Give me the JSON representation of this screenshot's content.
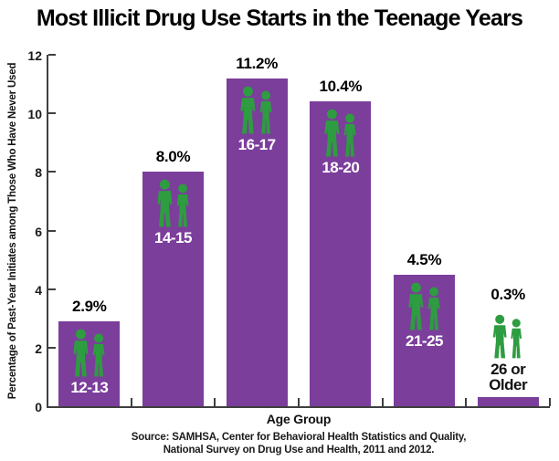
{
  "page": {
    "title": "Most Illicit Drug Use Starts in the Teenage Years"
  },
  "chart_data": {
    "type": "bar",
    "title": "Most Illicit Drug Use Starts in the Teenage Years",
    "categories": [
      "12-13",
      "14-15",
      "16-17",
      "18-20",
      "21-25",
      "26 or Older"
    ],
    "category_label_lines": [
      [
        "12-13"
      ],
      [
        "14-15"
      ],
      [
        "16-17"
      ],
      [
        "18-20"
      ],
      [
        "21-25"
      ],
      [
        "26 or",
        "Older"
      ]
    ],
    "values": [
      2.9,
      8.0,
      11.2,
      10.4,
      4.5,
      0.3
    ],
    "value_labels": [
      "2.9%",
      "8.0%",
      "11.2%",
      "10.4%",
      "4.5%",
      "0.3%"
    ],
    "xlabel": "Age Group",
    "ylabel": "Percentage of Past-Year Initiates among Those Who Have Never Used",
    "ylim": [
      0,
      12
    ],
    "yticks": [
      0,
      2,
      4,
      6,
      8,
      10,
      12
    ],
    "grid": false,
    "legend_position": "none",
    "bar_icon": "two-people-pictogram",
    "colors": {
      "bar": "#7B3E9B",
      "icon_green": "#2E9C40",
      "axis": "#3F3F3F",
      "bar_label_text": "#FFFFFF",
      "value_label_text": "#000000"
    },
    "source_lines": [
      "Source: SAMHSA, Center for Behavioral Health Statistics and Quality,",
      "National Survey on Drug Use and Health, 2011 and 2012."
    ]
  }
}
